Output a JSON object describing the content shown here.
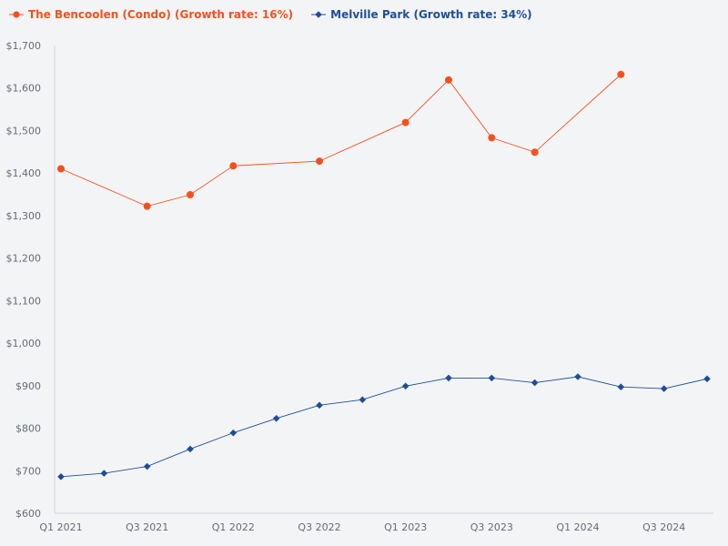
{
  "chart_data": {
    "type": "line",
    "categories": [
      "Q1 2021",
      "Q2 2021",
      "Q3 2021",
      "Q4 2021",
      "Q1 2022",
      "Q2 2022",
      "Q3 2022",
      "Q4 2022",
      "Q1 2023",
      "Q2 2023",
      "Q3 2023",
      "Q4 2023",
      "Q1 2024",
      "Q2 2024",
      "Q3 2024",
      "Q4 2024"
    ],
    "x_tick_labels": [
      "Q1 2021",
      "Q3 2021",
      "Q1 2022",
      "Q3 2022",
      "Q1 2023",
      "Q3 2023",
      "Q1 2024",
      "Q3 2024"
    ],
    "x_tick_indices": [
      0,
      2,
      4,
      6,
      8,
      10,
      12,
      14
    ],
    "ylim": [
      600,
      1700
    ],
    "y_ticks": [
      600,
      700,
      800,
      900,
      1000,
      1100,
      1200,
      1300,
      1400,
      1500,
      1600,
      1700
    ],
    "y_tick_labels": [
      "$600",
      "$700",
      "$800",
      "$900",
      "$1,000",
      "$1,100",
      "$1,200",
      "$1,300",
      "$1,400",
      "$1,500",
      "$1,600",
      "$1,700"
    ],
    "series": [
      {
        "name": "The Bencoolen (Condo) (Growth rate: 16%)",
        "color": "#f4511e",
        "marker": "circle",
        "points": [
          {
            "x": 0,
            "y": 1410
          },
          {
            "x": 2,
            "y": 1322
          },
          {
            "x": 3,
            "y": 1349
          },
          {
            "x": 4,
            "y": 1417
          },
          {
            "x": 6,
            "y": 1428
          },
          {
            "x": 8,
            "y": 1519
          },
          {
            "x": 9,
            "y": 1619
          },
          {
            "x": 10,
            "y": 1483
          },
          {
            "x": 11,
            "y": 1449
          },
          {
            "x": 13,
            "y": 1632
          }
        ]
      },
      {
        "name": "Melville Park (Growth rate: 34%)",
        "color": "#1f4e99",
        "marker": "diamond",
        "points": [
          {
            "x": 0,
            "y": 686
          },
          {
            "x": 1,
            "y": 694
          },
          {
            "x": 2,
            "y": 710
          },
          {
            "x": 3,
            "y": 751
          },
          {
            "x": 4,
            "y": 789
          },
          {
            "x": 5,
            "y": 823
          },
          {
            "x": 6,
            "y": 854
          },
          {
            "x": 7,
            "y": 867
          },
          {
            "x": 8,
            "y": 899
          },
          {
            "x": 9,
            "y": 918
          },
          {
            "x": 10,
            "y": 918
          },
          {
            "x": 11,
            "y": 907
          },
          {
            "x": 12,
            "y": 921
          },
          {
            "x": 13,
            "y": 897
          },
          {
            "x": 14,
            "y": 893
          },
          {
            "x": 15,
            "y": 916
          }
        ]
      }
    ]
  }
}
